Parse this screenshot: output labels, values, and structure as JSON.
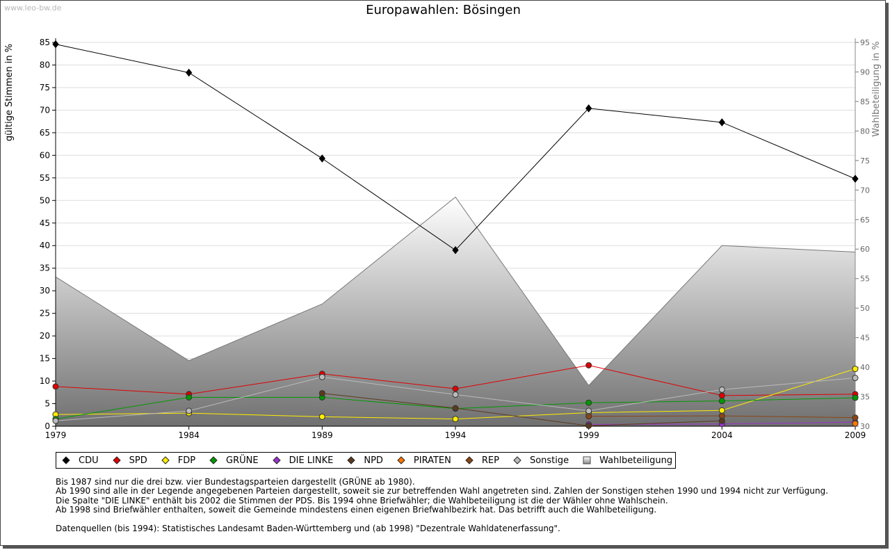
{
  "watermark": "www.leo-bw.de",
  "chart_data": {
    "type": "line",
    "title": "Europawahlen: Bösingen",
    "ylabel": "gültige Stimmen in %",
    "y2label": "Wahlbeteiligung in %",
    "x": [
      "1979",
      "1984",
      "1989",
      "1994",
      "1999",
      "2004",
      "2009"
    ],
    "ylim": [
      0,
      85
    ],
    "y2lim": [
      30,
      95
    ],
    "yticks": [
      0,
      5,
      10,
      15,
      20,
      25,
      30,
      35,
      40,
      45,
      50,
      55,
      60,
      65,
      70,
      75,
      80,
      85
    ],
    "y2ticks": [
      30,
      35,
      40,
      45,
      50,
      55,
      60,
      65,
      70,
      75,
      80,
      85,
      90,
      95
    ],
    "grid": true,
    "legend_position": "bottom",
    "series": [
      {
        "name": "CDU",
        "color": "#000000",
        "values": [
          84.6,
          78.3,
          59.3,
          39.0,
          70.4,
          67.3,
          54.8
        ]
      },
      {
        "name": "SPD",
        "color": "#e00000",
        "values": [
          8.8,
          7.1,
          11.6,
          8.3,
          13.5,
          6.8,
          7.1
        ]
      },
      {
        "name": "FDP",
        "color": "#ffee00",
        "values": [
          2.6,
          2.9,
          2.1,
          1.6,
          3.0,
          3.5,
          12.7
        ]
      },
      {
        "name": "GRÜNE",
        "color": "#009900",
        "values": [
          1.6,
          6.4,
          6.4,
          3.9,
          5.2,
          5.6,
          6.3
        ]
      },
      {
        "name": "DIE LINKE",
        "color": "#9933cc",
        "values": [
          null,
          null,
          null,
          null,
          0.4,
          0.5,
          0.9
        ]
      },
      {
        "name": "NPD",
        "color": "#5c3a1e",
        "values": [
          null,
          null,
          7.3,
          4.0,
          0.1,
          1.2,
          null
        ]
      },
      {
        "name": "PIRATEN",
        "color": "#ff7700",
        "values": [
          null,
          null,
          null,
          null,
          null,
          null,
          0.6
        ]
      },
      {
        "name": "REP",
        "color": "#8b4513",
        "values": [
          null,
          null,
          null,
          null,
          2.2,
          2.3,
          1.9
        ]
      },
      {
        "name": "Sonstige",
        "color": "#bbbbbb",
        "values": [
          1.2,
          3.4,
          10.9,
          7.0,
          3.4,
          8.1,
          10.7
        ]
      }
    ],
    "area": {
      "name": "Wahlbeteiligung",
      "axis": "right",
      "values": [
        55.3,
        41.1,
        50.7,
        68.8,
        36.9,
        60.6,
        59.5
      ]
    }
  },
  "legend": [
    {
      "label": "CDU",
      "color": "#000000",
      "shape": "diamond"
    },
    {
      "label": "SPD",
      "color": "#e00000",
      "shape": "diamond"
    },
    {
      "label": "FDP",
      "color": "#ffee00",
      "shape": "diamond"
    },
    {
      "label": "GRÜNE",
      "color": "#009900",
      "shape": "diamond"
    },
    {
      "label": "DIE LINKE",
      "color": "#9933cc",
      "shape": "diamond"
    },
    {
      "label": "NPD",
      "color": "#5c3a1e",
      "shape": "diamond"
    },
    {
      "label": "PIRATEN",
      "color": "#ff7700",
      "shape": "diamond"
    },
    {
      "label": "REP",
      "color": "#8b4513",
      "shape": "diamond"
    },
    {
      "label": "Sonstige",
      "color": "#bbbbbb",
      "shape": "diamond"
    },
    {
      "label": "Wahlbeteiligung",
      "color": "#cccccc",
      "shape": "square"
    }
  ],
  "notes": [
    "Bis 1987 sind nur die drei bzw. vier Bundestagsparteien dargestellt (GRÜNE ab 1980).",
    "Ab 1990 sind alle in der Legende angegebenen Parteien dargestellt, soweit sie zur betreffenden Wahl angetreten sind. Zahlen der Sonstigen stehen 1990 und 1994 nicht zur Verfügung.",
    "Die Spalte \"DIE LINKE\" enthält bis 2002 die Stimmen der PDS. Bis 1994 ohne Briefwähler; die Wahlbeteiligung ist die der Wähler ohne Wahlschein.",
    "Ab 1998 sind Briefwähler enthalten, soweit die Gemeinde mindestens einen eigenen Briefwahlbezirk hat. Das betrifft auch die Wahlbeteiligung.",
    "",
    "Datenquellen (bis 1994): Statistisches Landesamt Baden-Württemberg und (ab 1998) \"Dezentrale Wahldatenerfassung\"."
  ]
}
